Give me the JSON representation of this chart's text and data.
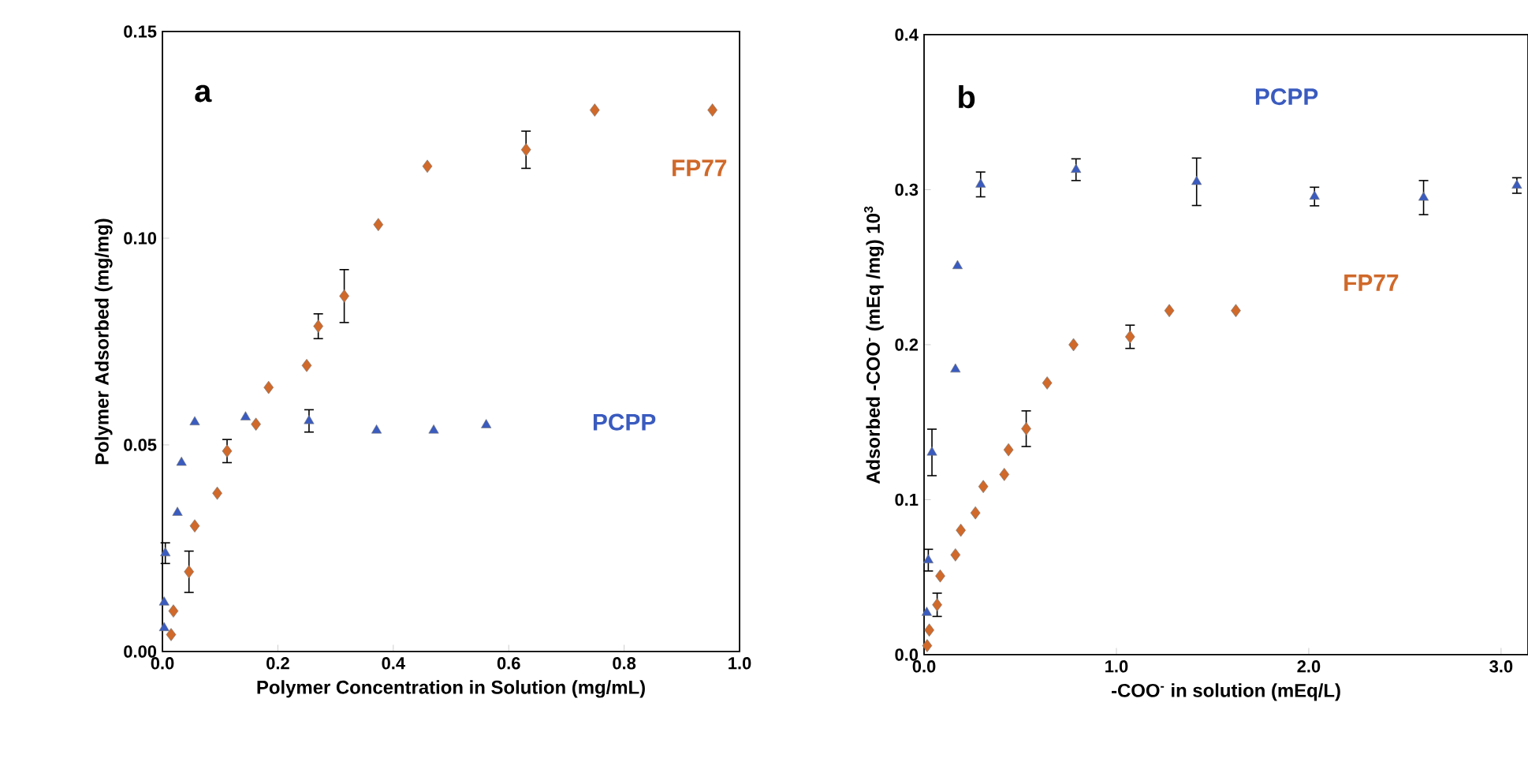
{
  "chart_data": [
    {
      "type": "scatter",
      "xlabel": "Polymer Concentration in Solution (mg/mL)",
      "ylabel": "Polymer Adsorbed (mg/mg)",
      "annotations": [
        "a"
      ],
      "xlim": [
        0,
        1
      ],
      "ylim": [
        0,
        0.15
      ],
      "xticks": [
        {
          "value": 0,
          "label": "0.0"
        },
        {
          "value": 0.2,
          "label": "0.2"
        },
        {
          "value": 0.4,
          "label": "0.4"
        },
        {
          "value": 0.6,
          "label": "0.6"
        },
        {
          "value": 0.8,
          "label": "0.8"
        },
        {
          "value": 1,
          "label": "1.0"
        }
      ],
      "yticks": [
        {
          "value": 0,
          "label": "0.00"
        },
        {
          "value": 0.05,
          "label": "0.05"
        },
        {
          "value": 0.1,
          "label": "0.10"
        },
        {
          "value": 0.15,
          "label": "0.15"
        }
      ],
      "series": [
        {
          "name": "FP77",
          "color": "#d0692a",
          "marker": "diamond",
          "x": [
            0.015,
            0.019,
            0.046,
            0.056,
            0.095,
            0.112,
            0.162,
            0.184,
            0.25,
            0.27,
            0.315,
            0.374,
            0.459,
            0.63,
            0.749,
            0.953
          ],
          "values": [
            0.0041,
            0.0098,
            0.0193,
            0.0304,
            0.0383,
            0.0485,
            0.055,
            0.0639,
            0.0692,
            0.0787,
            0.086,
            0.1033,
            0.1174,
            0.1214,
            0.131,
            0.131
          ],
          "errors": [
            null,
            null,
            0.005,
            null,
            null,
            0.0028,
            null,
            null,
            null,
            0.003,
            0.0064,
            null,
            null,
            0.0045,
            null,
            null
          ]
        },
        {
          "name": "PCPP",
          "color": "#3a5bbf",
          "marker": "triangle",
          "x": [
            0.003,
            0.003,
            0.005,
            0.026,
            0.033,
            0.056,
            0.144,
            0.254,
            0.371,
            0.47,
            0.561
          ],
          "values": [
            0.0057,
            0.0119,
            0.0238,
            0.0336,
            0.0457,
            0.0555,
            0.0567,
            0.0558,
            0.0535,
            0.0535,
            0.0548
          ],
          "errors": [
            null,
            null,
            0.0025,
            null,
            null,
            null,
            null,
            0.0027,
            null,
            null,
            null
          ]
        }
      ]
    },
    {
      "type": "scatter",
      "xlabel": "-COO$^{-}$ in solution (mEq/L)",
      "ylabel": "Adsorbed -COO$^{-}$ (mEq /mg) 10$^{3}$",
      "annotations": [
        "b"
      ],
      "xlim": [
        0,
        3.14
      ],
      "ylim": [
        0,
        0.4
      ],
      "xticks": [
        {
          "value": 0,
          "label": "0.0"
        },
        {
          "value": 1,
          "label": "1.0"
        },
        {
          "value": 2,
          "label": "2.0"
        },
        {
          "value": 3,
          "label": "3.0"
        }
      ],
      "yticks": [
        {
          "value": 0,
          "label": "0.0"
        },
        {
          "value": 0.1,
          "label": "0.1"
        },
        {
          "value": 0.2,
          "label": "0.2"
        },
        {
          "value": 0.3,
          "label": "0.3"
        },
        {
          "value": 0.4,
          "label": "0.4"
        }
      ],
      "series": [
        {
          "name": "PCPP",
          "color": "#3a5bbf",
          "marker": "triangle",
          "x": [
            0.014,
            0.022,
            0.041,
            0.163,
            0.174,
            0.294,
            0.79,
            1.417,
            2.03,
            2.597,
            3.082
          ],
          "values": [
            0.0271,
            0.061,
            0.1305,
            0.1841,
            0.2508,
            0.3034,
            0.3129,
            0.3051,
            0.2956,
            0.2949,
            0.3027
          ],
          "errors": [
            null,
            0.007,
            0.015,
            null,
            null,
            0.008,
            0.007,
            0.0153,
            0.006,
            0.011,
            0.005
          ]
        },
        {
          "name": "FP77",
          "color": "#d0692a",
          "marker": "diamond",
          "x": [
            0.016,
            0.027,
            0.068,
            0.084,
            0.163,
            0.191,
            0.267,
            0.308,
            0.417,
            0.439,
            0.531,
            0.64,
            0.777,
            1.071,
            1.275,
            1.621
          ],
          "values": [
            0.0058,
            0.0159,
            0.0322,
            0.0508,
            0.0644,
            0.0803,
            0.0915,
            0.1085,
            0.1163,
            0.1322,
            0.1458,
            0.1753,
            0.2,
            0.2051,
            0.222,
            0.222
          ],
          "errors": [
            null,
            null,
            0.0075,
            null,
            null,
            null,
            null,
            null,
            null,
            null,
            0.0115,
            null,
            null,
            0.0075,
            null,
            null
          ]
        }
      ]
    }
  ]
}
